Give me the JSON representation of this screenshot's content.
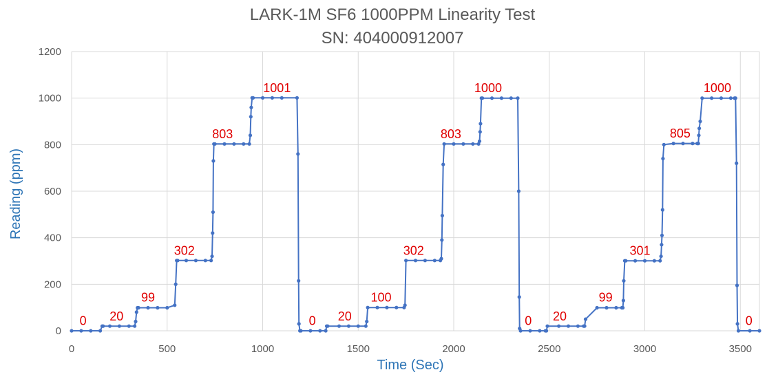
{
  "chart_data": {
    "type": "scatter",
    "title": "LARK-1M SF6 1000PPM Linearity Test",
    "subtitle": "SN: 404000912007",
    "xlabel": "Time (Sec)",
    "ylabel": "Reading (ppm)",
    "xlim": [
      0,
      3600
    ],
    "ylim": [
      0,
      1200
    ],
    "x_ticks": [
      0,
      500,
      1000,
      1500,
      2000,
      2500,
      3000,
      3500
    ],
    "y_ticks": [
      0,
      200,
      400,
      600,
      800,
      1000,
      1200
    ],
    "grid": true,
    "legend": "none",
    "series_color": "#4472C4",
    "label_color": "#E00000",
    "series": [
      {
        "x": [
          0,
          50,
          100,
          150,
          160,
          165,
          200,
          250,
          300,
          330,
          335,
          340,
          345,
          350,
          400,
          450,
          500,
          540,
          545,
          550,
          555,
          600,
          650,
          700,
          730,
          735,
          738,
          740,
          742,
          745,
          750,
          800,
          850,
          900,
          930,
          935,
          938,
          940,
          945,
          950,
          1000,
          1050,
          1100,
          1180,
          1185,
          1188,
          1190,
          1195,
          1200,
          1250,
          1300,
          1330,
          1335,
          1340,
          1400,
          1450,
          1500,
          1540,
          1545,
          1550,
          1600,
          1650,
          1700,
          1740,
          1745,
          1750,
          1800,
          1850,
          1900,
          1930,
          1935,
          1938,
          1940,
          1945,
          1950,
          2000,
          2050,
          2100,
          2130,
          2135,
          2138,
          2140,
          2145,
          2150,
          2200,
          2250,
          2300,
          2335,
          2340,
          2343,
          2345,
          2350,
          2400,
          2450,
          2480,
          2485,
          2490,
          2550,
          2600,
          2650,
          2680,
          2685,
          2690,
          2750,
          2800,
          2850,
          2880,
          2885,
          2888,
          2890,
          2895,
          2900,
          2950,
          3000,
          3050,
          3080,
          3085,
          3088,
          3090,
          3093,
          3095,
          3100,
          3150,
          3200,
          3250,
          3275,
          3280,
          3283,
          3285,
          3290,
          3300,
          3350,
          3400,
          3450,
          3470,
          3475,
          3480,
          3483,
          3485,
          3490,
          3550,
          3600
        ],
        "y": [
          0,
          0,
          0,
          0,
          20,
          20,
          20,
          20,
          20,
          20,
          40,
          80,
          99,
          99,
          99,
          99,
          99,
          110,
          200,
          302,
          302,
          302,
          302,
          302,
          302,
          320,
          420,
          510,
          730,
          803,
          803,
          803,
          803,
          803,
          803,
          840,
          920,
          960,
          1001,
          1001,
          1001,
          1001,
          1001,
          1001,
          760,
          215,
          30,
          0,
          0,
          0,
          0,
          0,
          20,
          20,
          20,
          20,
          20,
          20,
          40,
          100,
          100,
          100,
          100,
          100,
          110,
          302,
          302,
          302,
          302,
          302,
          310,
          390,
          495,
          715,
          803,
          803,
          803,
          803,
          803,
          815,
          855,
          890,
          1000,
          1000,
          1000,
          1000,
          1000,
          1000,
          600,
          145,
          10,
          0,
          0,
          0,
          0,
          0,
          20,
          20,
          20,
          20,
          20,
          20,
          50,
          99,
          99,
          99,
          99,
          99,
          130,
          215,
          301,
          301,
          301,
          301,
          301,
          301,
          320,
          370,
          410,
          520,
          740,
          800,
          805,
          805,
          805,
          805,
          805,
          840,
          870,
          900,
          1000,
          1000,
          1000,
          1000,
          1000,
          1000,
          720,
          195,
          30,
          0,
          0,
          0
        ]
      }
    ],
    "annotations": [
      {
        "text": "0",
        "x": 60,
        "y": 25
      },
      {
        "text": "20",
        "x": 235,
        "y": 45
      },
      {
        "text": "99",
        "x": 400,
        "y": 125
      },
      {
        "text": "302",
        "x": 590,
        "y": 327
      },
      {
        "text": "803",
        "x": 790,
        "y": 828
      },
      {
        "text": "1001",
        "x": 1075,
        "y": 1026
      },
      {
        "text": "0",
        "x": 1260,
        "y": 25
      },
      {
        "text": "20",
        "x": 1430,
        "y": 45
      },
      {
        "text": "100",
        "x": 1620,
        "y": 125
      },
      {
        "text": "302",
        "x": 1790,
        "y": 327
      },
      {
        "text": "803",
        "x": 1985,
        "y": 828
      },
      {
        "text": "1000",
        "x": 2180,
        "y": 1025
      },
      {
        "text": "0",
        "x": 2390,
        "y": 25
      },
      {
        "text": "20",
        "x": 2555,
        "y": 45
      },
      {
        "text": "99",
        "x": 2795,
        "y": 125
      },
      {
        "text": "301",
        "x": 2975,
        "y": 326
      },
      {
        "text": "805",
        "x": 3185,
        "y": 830
      },
      {
        "text": "1000",
        "x": 3380,
        "y": 1025
      },
      {
        "text": "0",
        "x": 3545,
        "y": 25
      }
    ]
  }
}
